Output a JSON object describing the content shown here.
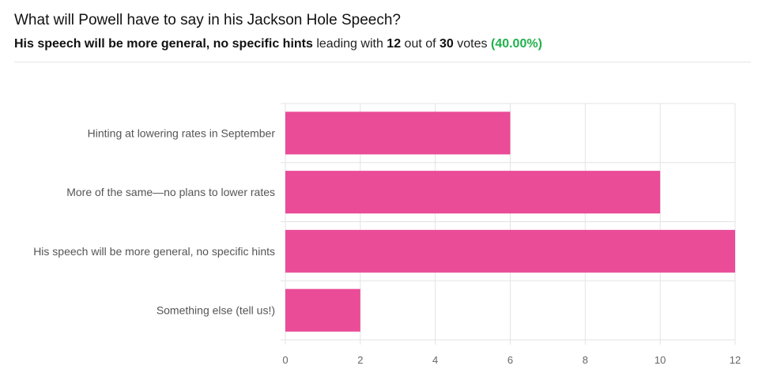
{
  "poll": {
    "question": "What will Powell have to say in his Jackson Hole Speech?",
    "leader": "His speech will be more general, no specific hints",
    "leading_with": "leading with",
    "leader_votes": "12",
    "out_of": "out of",
    "total_votes": "30",
    "votes_word": "votes",
    "leader_pct": "(40.00%)"
  },
  "colors": {
    "bar": "#ea4c98",
    "grid": "#e3e3e3",
    "pct": "#22b14c"
  },
  "chart_data": {
    "type": "bar",
    "orientation": "horizontal",
    "categories": [
      "Hinting at lowering rates in September",
      "More of the same—no plans to lower rates",
      "His speech will be more general, no specific hints",
      "Something else (tell us!)"
    ],
    "values": [
      6,
      10,
      12,
      2
    ],
    "xlim": [
      0,
      12
    ],
    "xticks": [
      0,
      2,
      4,
      6,
      8,
      10,
      12
    ],
    "grid": true,
    "title": "",
    "xlabel": "",
    "ylabel": ""
  }
}
